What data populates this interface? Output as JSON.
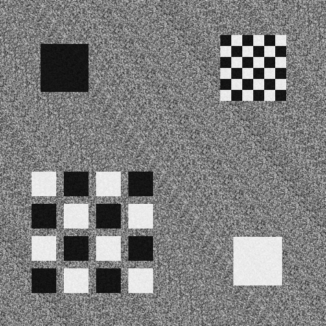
{
  "colors": {
    "background": "#808080",
    "dark": "#141414",
    "light": "#ebebeb",
    "noise_amplitude": 70
  },
  "shapes": {
    "dark_square": {
      "fill": "dark"
    },
    "light_square": {
      "fill": "light"
    },
    "fine_checkerboard": {
      "rows": 6,
      "cols": 6,
      "first_cell": "dark"
    },
    "coarse_checkerboard": {
      "rows": 4,
      "cols": 4,
      "first_cell": "light"
    }
  }
}
